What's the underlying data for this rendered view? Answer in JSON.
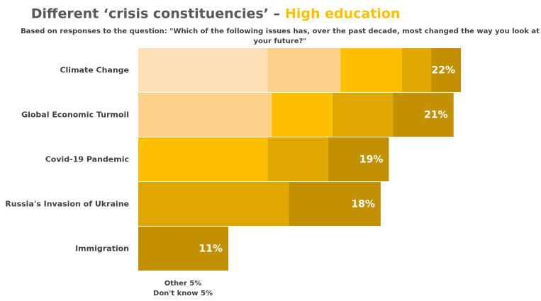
{
  "chart_data": {
    "type": "stacked-bar",
    "title": "Different ‘crisis constituencies’ –",
    "title_highlight": "High education",
    "subtitle": [
      "Based on responses to the question: \"Which of the following issues has, over the past decade, most changed the way you look at",
      "your future?\""
    ],
    "footnote": [
      "Other 5%",
      "Don't know 5%"
    ],
    "colors": [
      "#fde0b5",
      "#fdd08a",
      "#fdbf00",
      "#e0a800",
      "#c29000"
    ],
    "rows": [
      {
        "name": "Climate Change",
        "value": 22,
        "value_label": "22%",
        "segments": [
          15.8,
          8.9,
          7.5,
          3.6,
          3.6
        ]
      },
      {
        "name": "Global Economic Turmoil",
        "value": 21,
        "value_label": "21%",
        "segments": [
          16.3,
          7.4,
          7.4,
          7.4
        ]
      },
      {
        "name": "Covid-19 Pandemic",
        "value": 19,
        "value_label": "19%",
        "segments": [
          15.8,
          7.4,
          7.4
        ]
      },
      {
        "name": "Russia's Invasion of Ukraine",
        "value": 18,
        "value_label": "18%",
        "segments": [
          18.4,
          11.2
        ]
      },
      {
        "name": "Immigration",
        "value": 11,
        "value_label": "11%",
        "segments": [
          11.0
        ]
      }
    ]
  }
}
